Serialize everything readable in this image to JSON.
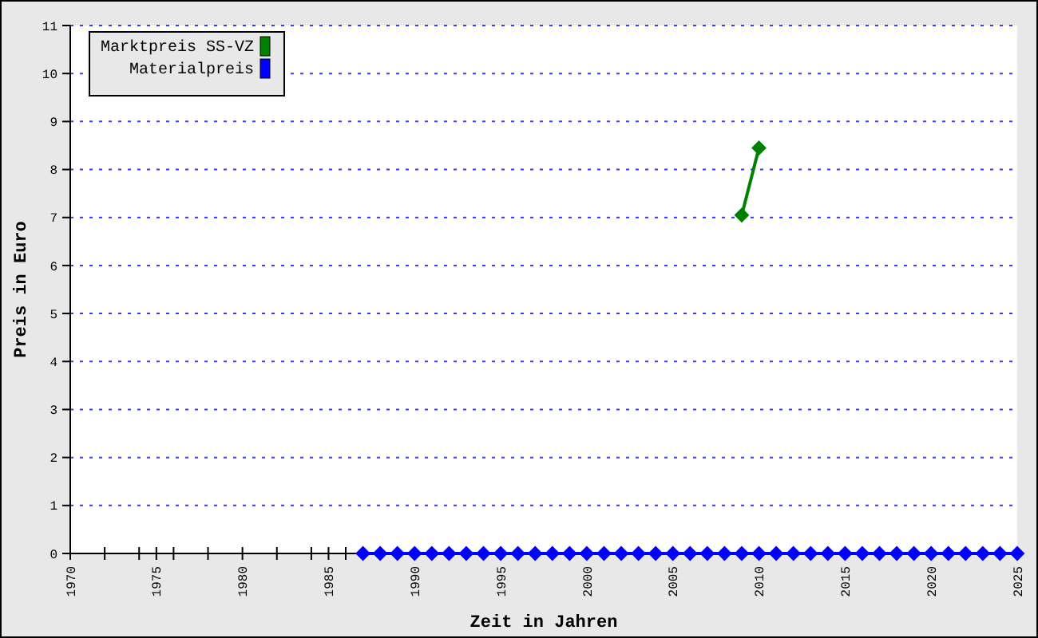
{
  "chart_data": {
    "type": "line",
    "xlabel": "Zeit in Jahren",
    "ylabel": "Preis in Euro",
    "xlim": [
      1970,
      2025
    ],
    "xticks": [
      1970,
      {
        "value": 1972,
        "label": null
      },
      {
        "value": 1974,
        "label": null
      },
      1975,
      {
        "value": 1976,
        "label": null
      },
      {
        "value": 1978,
        "label": null
      },
      1980,
      {
        "value": 1982,
        "label": null
      },
      {
        "value": 1984,
        "label": null
      },
      1985,
      {
        "value": 1986,
        "label": null
      },
      1990,
      1995,
      2000,
      2005,
      2010,
      2015,
      2020,
      2025
    ],
    "ylim": [
      0,
      11
    ],
    "yticks": [
      0,
      1,
      2,
      3,
      4,
      5,
      6,
      7,
      8,
      9,
      10,
      11
    ],
    "grid": "y",
    "legend": "top left",
    "marker": "diamond",
    "line_style": "solid",
    "series": [
      {
        "name": "Marktpreis SS-VZ",
        "color": "#008000",
        "x": [
          2009,
          2010
        ],
        "values": [
          7.05,
          8.45
        ]
      },
      {
        "name": "Materialpreis",
        "color": "#0000ff",
        "x": [
          1987,
          1988,
          1989,
          1990,
          1991,
          1992,
          1993,
          1994,
          1995,
          1996,
          1997,
          1998,
          1999,
          2000,
          2001,
          2002,
          2003,
          2004,
          2005,
          2006,
          2007,
          2008,
          2009,
          2010,
          2011,
          2012,
          2013,
          2014,
          2015,
          2016,
          2017,
          2018,
          2019,
          2020,
          2021,
          2022,
          2023,
          2024,
          2025
        ],
        "values": [
          0,
          0,
          0,
          0,
          0,
          0,
          0,
          0,
          0,
          0,
          0,
          0,
          0,
          0,
          0,
          0,
          0,
          0,
          0,
          0,
          0,
          0,
          0,
          0,
          0,
          0,
          0,
          0,
          0,
          0,
          0,
          0,
          0,
          0,
          0,
          0,
          0,
          0,
          0
        ]
      }
    ]
  }
}
